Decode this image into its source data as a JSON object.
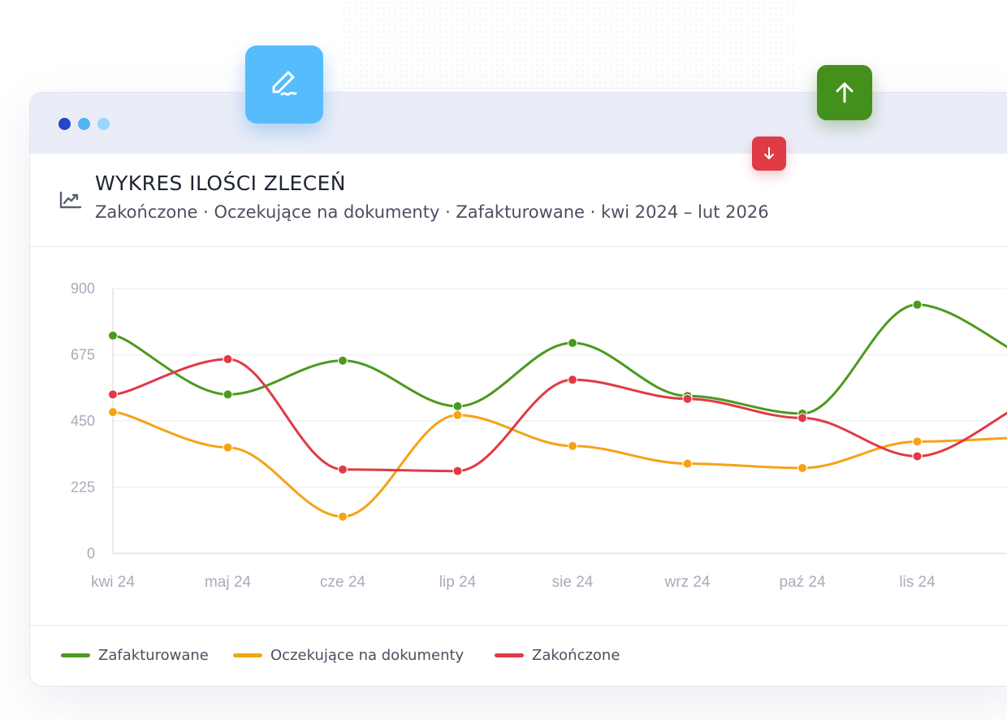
{
  "header": {
    "title": "WYKRES ILOŚCI ZLECEŃ",
    "subtitle": "Zakończone · Oczekujące na dokumenty · Zafakturowane · kwi 2024 – lut 2026"
  },
  "icons": {
    "chart": "trending-up-icon",
    "sign": "signature-icon",
    "up": "arrow-up-icon",
    "down": "arrow-down-icon"
  },
  "colors": {
    "zafakturowane": "#4a9a1e",
    "oczekujace": "#f5a315",
    "zakonczone": "#e03a45",
    "sign_button": "#56bcfb",
    "up_button": "#44901c",
    "down_button": "#e03a45"
  },
  "legend": [
    {
      "label": "Zafakturowane",
      "color": "#4a9a1e"
    },
    {
      "label": "Oczekujące na dokumenty",
      "color": "#f5a315"
    },
    {
      "label": "Zakończone",
      "color": "#e03a45"
    }
  ],
  "chart_data": {
    "type": "line",
    "title": "WYKRES ILOŚCI ZLECEŃ",
    "subtitle": "Zakończone · Oczekujące na dokumenty · Zafakturowane · kwi 2024 – lut 2026",
    "xlabel": "",
    "ylabel": "",
    "categories": [
      "kwi 24",
      "maj 24",
      "cze 24",
      "lip 24",
      "sie 24",
      "wrz 24",
      "paź 24",
      "lis 24"
    ],
    "yticks": [
      0,
      225,
      450,
      675,
      900
    ],
    "ylim": [
      0,
      900
    ],
    "grid": true,
    "legend_position": "bottom-left",
    "series": [
      {
        "name": "Zafakturowane",
        "color": "#4a9a1e",
        "values": [
          740,
          540,
          655,
          500,
          715,
          535,
          475,
          845
        ],
        "tail": 665
      },
      {
        "name": "Oczekujące na dokumenty",
        "color": "#f5a315",
        "values": [
          480,
          360,
          125,
          470,
          365,
          305,
          290,
          380
        ],
        "tail": 395
      },
      {
        "name": "Zakończone",
        "color": "#e03a45",
        "values": [
          540,
          660,
          285,
          280,
          590,
          525,
          460,
          330
        ],
        "tail": 515
      }
    ]
  }
}
